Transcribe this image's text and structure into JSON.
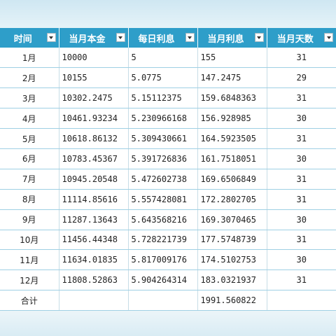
{
  "headers": [
    "时间",
    "当月本金",
    "每日利息",
    "当月利息",
    "当月天数"
  ],
  "rows": [
    {
      "month": "1月",
      "principal": "10000",
      "daily": "5",
      "interest": "155",
      "days": "31"
    },
    {
      "month": "2月",
      "principal": "10155",
      "daily": "5.0775",
      "interest": "147.2475",
      "days": "29"
    },
    {
      "month": "3月",
      "principal": "10302.2475",
      "daily": "5.15112375",
      "interest": "159.6848363",
      "days": "31"
    },
    {
      "month": "4月",
      "principal": "10461.93234",
      "daily": "5.230966168",
      "interest": "156.928985",
      "days": "30"
    },
    {
      "month": "5月",
      "principal": "10618.86132",
      "daily": "5.309430661",
      "interest": "164.5923505",
      "days": "31"
    },
    {
      "month": "6月",
      "principal": "10783.45367",
      "daily": "5.391726836",
      "interest": "161.7518051",
      "days": "30"
    },
    {
      "month": "7月",
      "principal": "10945.20548",
      "daily": "5.472602738",
      "interest": "169.6506849",
      "days": "31"
    },
    {
      "month": "8月",
      "principal": "11114.85616",
      "daily": "5.557428081",
      "interest": "172.2802705",
      "days": "31"
    },
    {
      "month": "9月",
      "principal": "11287.13643",
      "daily": "5.643568216",
      "interest": "169.3070465",
      "days": "30"
    },
    {
      "month": "10月",
      "principal": "11456.44348",
      "daily": "5.728221739",
      "interest": "177.5748739",
      "days": "31"
    },
    {
      "month": "11月",
      "principal": "11634.01835",
      "daily": "5.817009176",
      "interest": "174.5102753",
      "days": "30"
    },
    {
      "month": "12月",
      "principal": "11808.52863",
      "daily": "5.904264314",
      "interest": "183.0321937",
      "days": "31"
    }
  ],
  "total": {
    "label": "合计",
    "principal": "",
    "daily": "",
    "interest": "1991.560822",
    "days": ""
  }
}
